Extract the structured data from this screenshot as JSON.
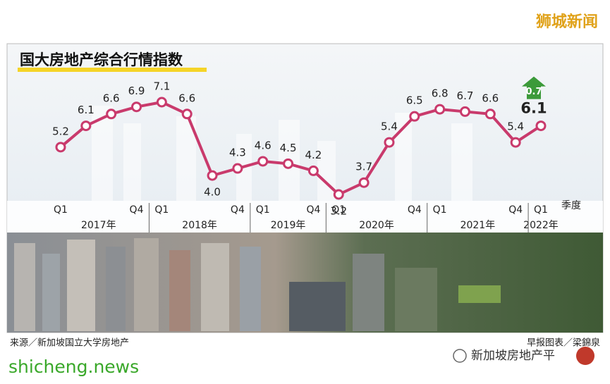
{
  "chart_data": {
    "type": "line",
    "title": "国大房地产综合行情指数",
    "categories": [
      "Q1",
      null,
      null,
      "Q4",
      "Q1",
      null,
      null,
      "Q4",
      "Q1",
      null,
      "Q4",
      "Q1",
      null,
      null,
      "Q4",
      "Q1",
      null,
      null,
      "Q4",
      "Q1"
    ],
    "year_labels": [
      "2017年",
      "2018年",
      "2019年",
      "2020年",
      "2021年",
      "2022年"
    ],
    "x_label": "季度",
    "series": [
      {
        "name": "国大房地产综合行情指数",
        "color": "#c93a6c",
        "values": [
          5.2,
          6.1,
          6.6,
          6.9,
          7.1,
          6.6,
          4.0,
          4.3,
          4.6,
          4.5,
          4.2,
          3.2,
          3.7,
          5.4,
          6.5,
          6.8,
          6.7,
          6.6,
          5.4,
          6.1
        ],
        "value_labels": [
          "5.2",
          "6.1",
          "6.6",
          "6.9",
          "7.1",
          "6.6",
          "4.0",
          "4.3",
          "4.6",
          "4.5",
          "4.2",
          "3.2",
          "3.7",
          "5.4",
          "6.5",
          "6.8",
          "6.7",
          "6.6",
          "5.4",
          "6.1"
        ]
      }
    ],
    "annotation": "0.7",
    "source": "来源／新加坡国立大学房地产",
    "credit": "早报图表／梁錦泉",
    "watermark_top": "狮城新闻",
    "watermark_bottom": "shicheng.news",
    "watermark_account": "新加坡房地产平"
  }
}
